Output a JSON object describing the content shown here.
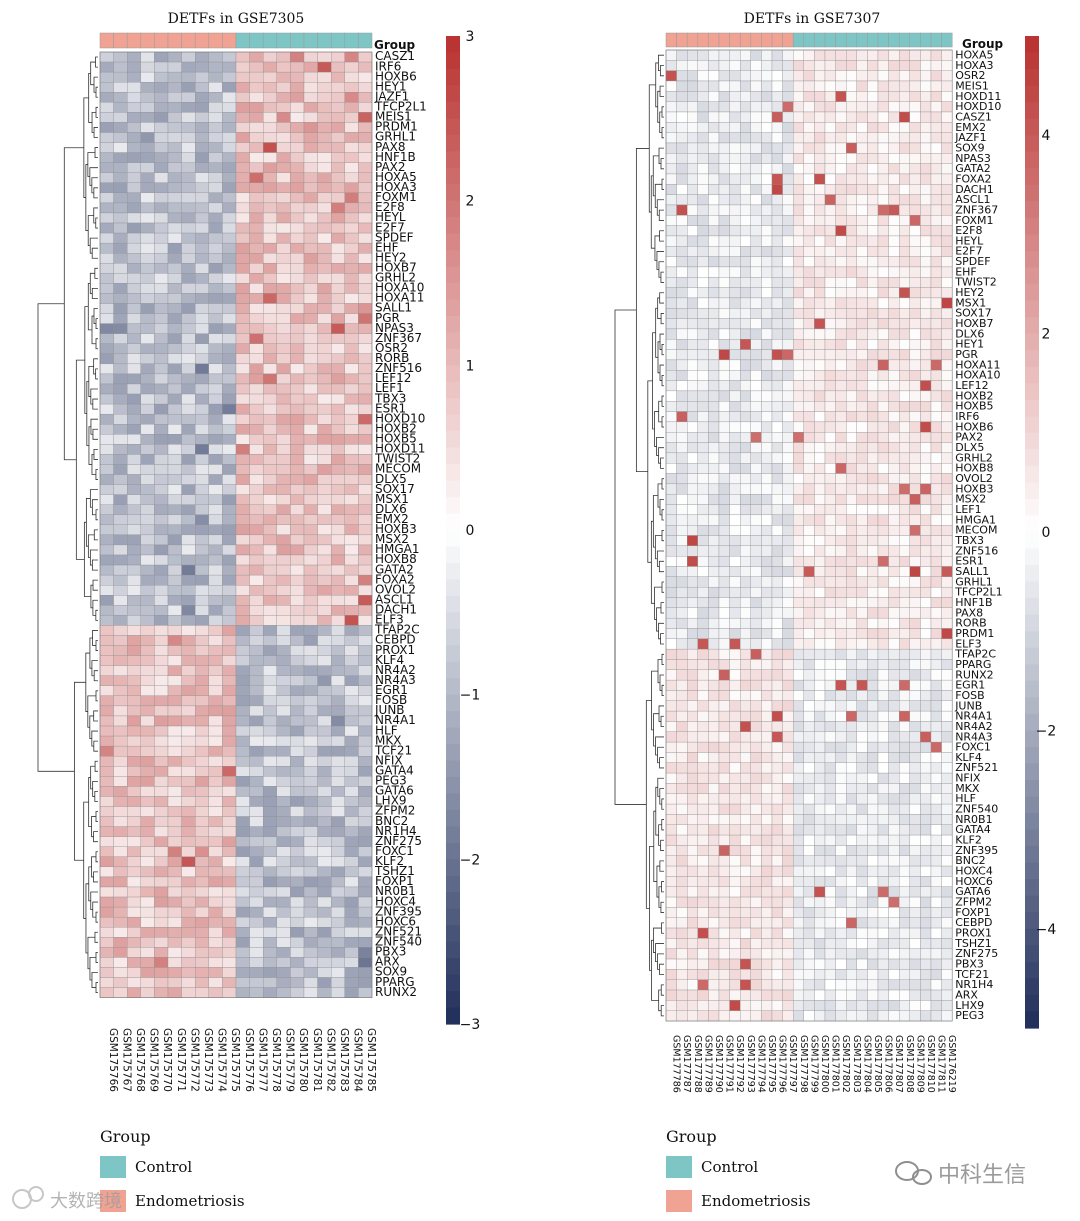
{
  "chart_data": [
    {
      "type": "heatmap",
      "title": "DETFs in GSE7305",
      "annotation_header": "Group",
      "groups": [
        {
          "name": "Endometriosis",
          "count": 10
        },
        {
          "name": "Control",
          "count": 10
        }
      ],
      "columns": [
        "GSM175766",
        "GSM175767",
        "GSM175768",
        "GSM175769",
        "GSM175770",
        "GSM175771",
        "GSM175772",
        "GSM175773",
        "GSM175774",
        "GSM175775",
        "GSM175776",
        "GSM175777",
        "GSM175778",
        "GSM175779",
        "GSM175780",
        "GSM175781",
        "GSM175782",
        "GSM175783",
        "GSM175784",
        "GSM175785"
      ],
      "rows": [
        "CASZ1",
        "IRF6",
        "HOXB6",
        "HEY1",
        "JAZF1",
        "TFCP2L1",
        "MEIS1",
        "PRDM1",
        "GRHL1",
        "PAX8",
        "HNF1B",
        "PAX2",
        "HOXA5",
        "HOXA3",
        "FOXM1",
        "E2F8",
        "HEYL",
        "E2F7",
        "SPDEF",
        "EHF",
        "HEY2",
        "HOXB7",
        "GRHL2",
        "HOXA10",
        "HOXA11",
        "SALL1",
        "PGR",
        "NPAS3",
        "ZNF367",
        "OSR2",
        "RORB",
        "ZNF516",
        "LEF12",
        "LEF1",
        "TBX3",
        "ESR1",
        "HOXD10",
        "HOXB2",
        "HOXB5",
        "HOXD11",
        "TWIST2",
        "MECOM",
        "DLX5",
        "SOX17",
        "MSX1",
        "DLX6",
        "EMX2",
        "HOXB3",
        "MSX2",
        "HMGA1",
        "HOXB8",
        "GATA2",
        "FOXA2",
        "OVOL2",
        "ASCL1",
        "DACH1",
        "ELF3",
        "TFAP2C",
        "CEBPD",
        "PROX1",
        "KLF4",
        "NR4A2",
        "NR4A3",
        "EGR1",
        "FOSB",
        "JUNB",
        "NR4A1",
        "HLF",
        "MKX",
        "TCF21",
        "NFIX",
        "GATA4",
        "PEG3",
        "GATA6",
        "LHX9",
        "ZFPM2",
        "BNC2",
        "NR1H4",
        "ZNF275",
        "FOXC1",
        "KLF2",
        "TSHZ1",
        "FOXP1",
        "NR0B1",
        "HOXC4",
        "ZNF395",
        "HOXC6",
        "ZNF521",
        "ZNF540",
        "PBX3",
        "ARX",
        "SOX9",
        "PPARG",
        "RUNX2"
      ],
      "scale": {
        "min": -3,
        "max": 3,
        "ticks": [
          3,
          2,
          1,
          0,
          -1,
          -2,
          -3
        ],
        "low_color": "#1f2d5a",
        "mid_color": "#ffffff",
        "high_color": "#b8312f"
      }
    },
    {
      "type": "heatmap",
      "title": "DETFs in GSE7307",
      "annotation_header": "Group",
      "groups": [
        {
          "name": "Endometriosis",
          "count": 12
        },
        {
          "name": "Control",
          "count": 15
        }
      ],
      "columns": [
        "GSM177786",
        "GSM177787",
        "GSM177788",
        "GSM177789",
        "GSM177790",
        "GSM177791",
        "GSM177792",
        "GSM177793",
        "GSM177794",
        "GSM177795",
        "GSM177796",
        "GSM177797",
        "GSM177798",
        "GSM177799",
        "GSM177800",
        "GSM177801",
        "GSM177802",
        "GSM177803",
        "GSM177804",
        "GSM177805",
        "GSM177806",
        "GSM177807",
        "GSM177808",
        "GSM177809",
        "GSM177810",
        "GSM177811",
        "GSM176219"
      ],
      "rows": [
        "HOXA5",
        "HOXA3",
        "OSR2",
        "MEIS1",
        "HOXD11",
        "HOXD10",
        "CASZ1",
        "EMX2",
        "JAZF1",
        "SOX9",
        "NPAS3",
        "GATA2",
        "FOXA2",
        "DACH1",
        "ASCL1",
        "ZNF367",
        "FOXM1",
        "E2F8",
        "HEYL",
        "E2F7",
        "SPDEF",
        "EHF",
        "TWIST2",
        "HEY2",
        "MSX1",
        "SOX17",
        "HOXB7",
        "DLX6",
        "HEY1",
        "PGR",
        "HOXA11",
        "HOXA10",
        "LEF12",
        "HOXB2",
        "HOXB5",
        "IRF6",
        "HOXB6",
        "PAX2",
        "DLX5",
        "GRHL2",
        "HOXB8",
        "OVOL2",
        "HOXB3",
        "MSX2",
        "LEF1",
        "HMGA1",
        "MECOM",
        "TBX3",
        "ZNF516",
        "ESR1",
        "SALL1",
        "GRHL1",
        "TFCP2L1",
        "HNF1B",
        "PAX8",
        "RORB",
        "PRDM1",
        "ELF3",
        "TFAP2C",
        "PPARG",
        "RUNX2",
        "EGR1",
        "FOSB",
        "JUNB",
        "NR4A1",
        "NR4A2",
        "NR4A3",
        "FOXC1",
        "KLF4",
        "ZNF521",
        "NFIX",
        "MKX",
        "HLF",
        "ZNF540",
        "NR0B1",
        "GATA4",
        "KLF2",
        "ZNF395",
        "BNC2",
        "HOXC4",
        "HOXC6",
        "GATA6",
        "ZFPM2",
        "FOXP1",
        "CEBPD",
        "PROX1",
        "TSHZ1",
        "ZNF275",
        "PBX3",
        "TCF21",
        "NR1H4",
        "ARX",
        "LHX9",
        "PEG3"
      ],
      "scale": {
        "min": -5,
        "max": 5,
        "ticks": [
          4,
          2,
          0,
          -2,
          -4
        ],
        "low_color": "#1f2d5a",
        "mid_color": "#ffffff",
        "high_color": "#b8312f"
      }
    }
  ],
  "legend": {
    "title": "Group",
    "items": [
      {
        "label": "Control",
        "color": "#7ec6c6"
      },
      {
        "label": "Endometriosis",
        "color": "#f0a393"
      }
    ]
  },
  "watermarks": {
    "left": "大数跨境",
    "right": "中科生信"
  }
}
